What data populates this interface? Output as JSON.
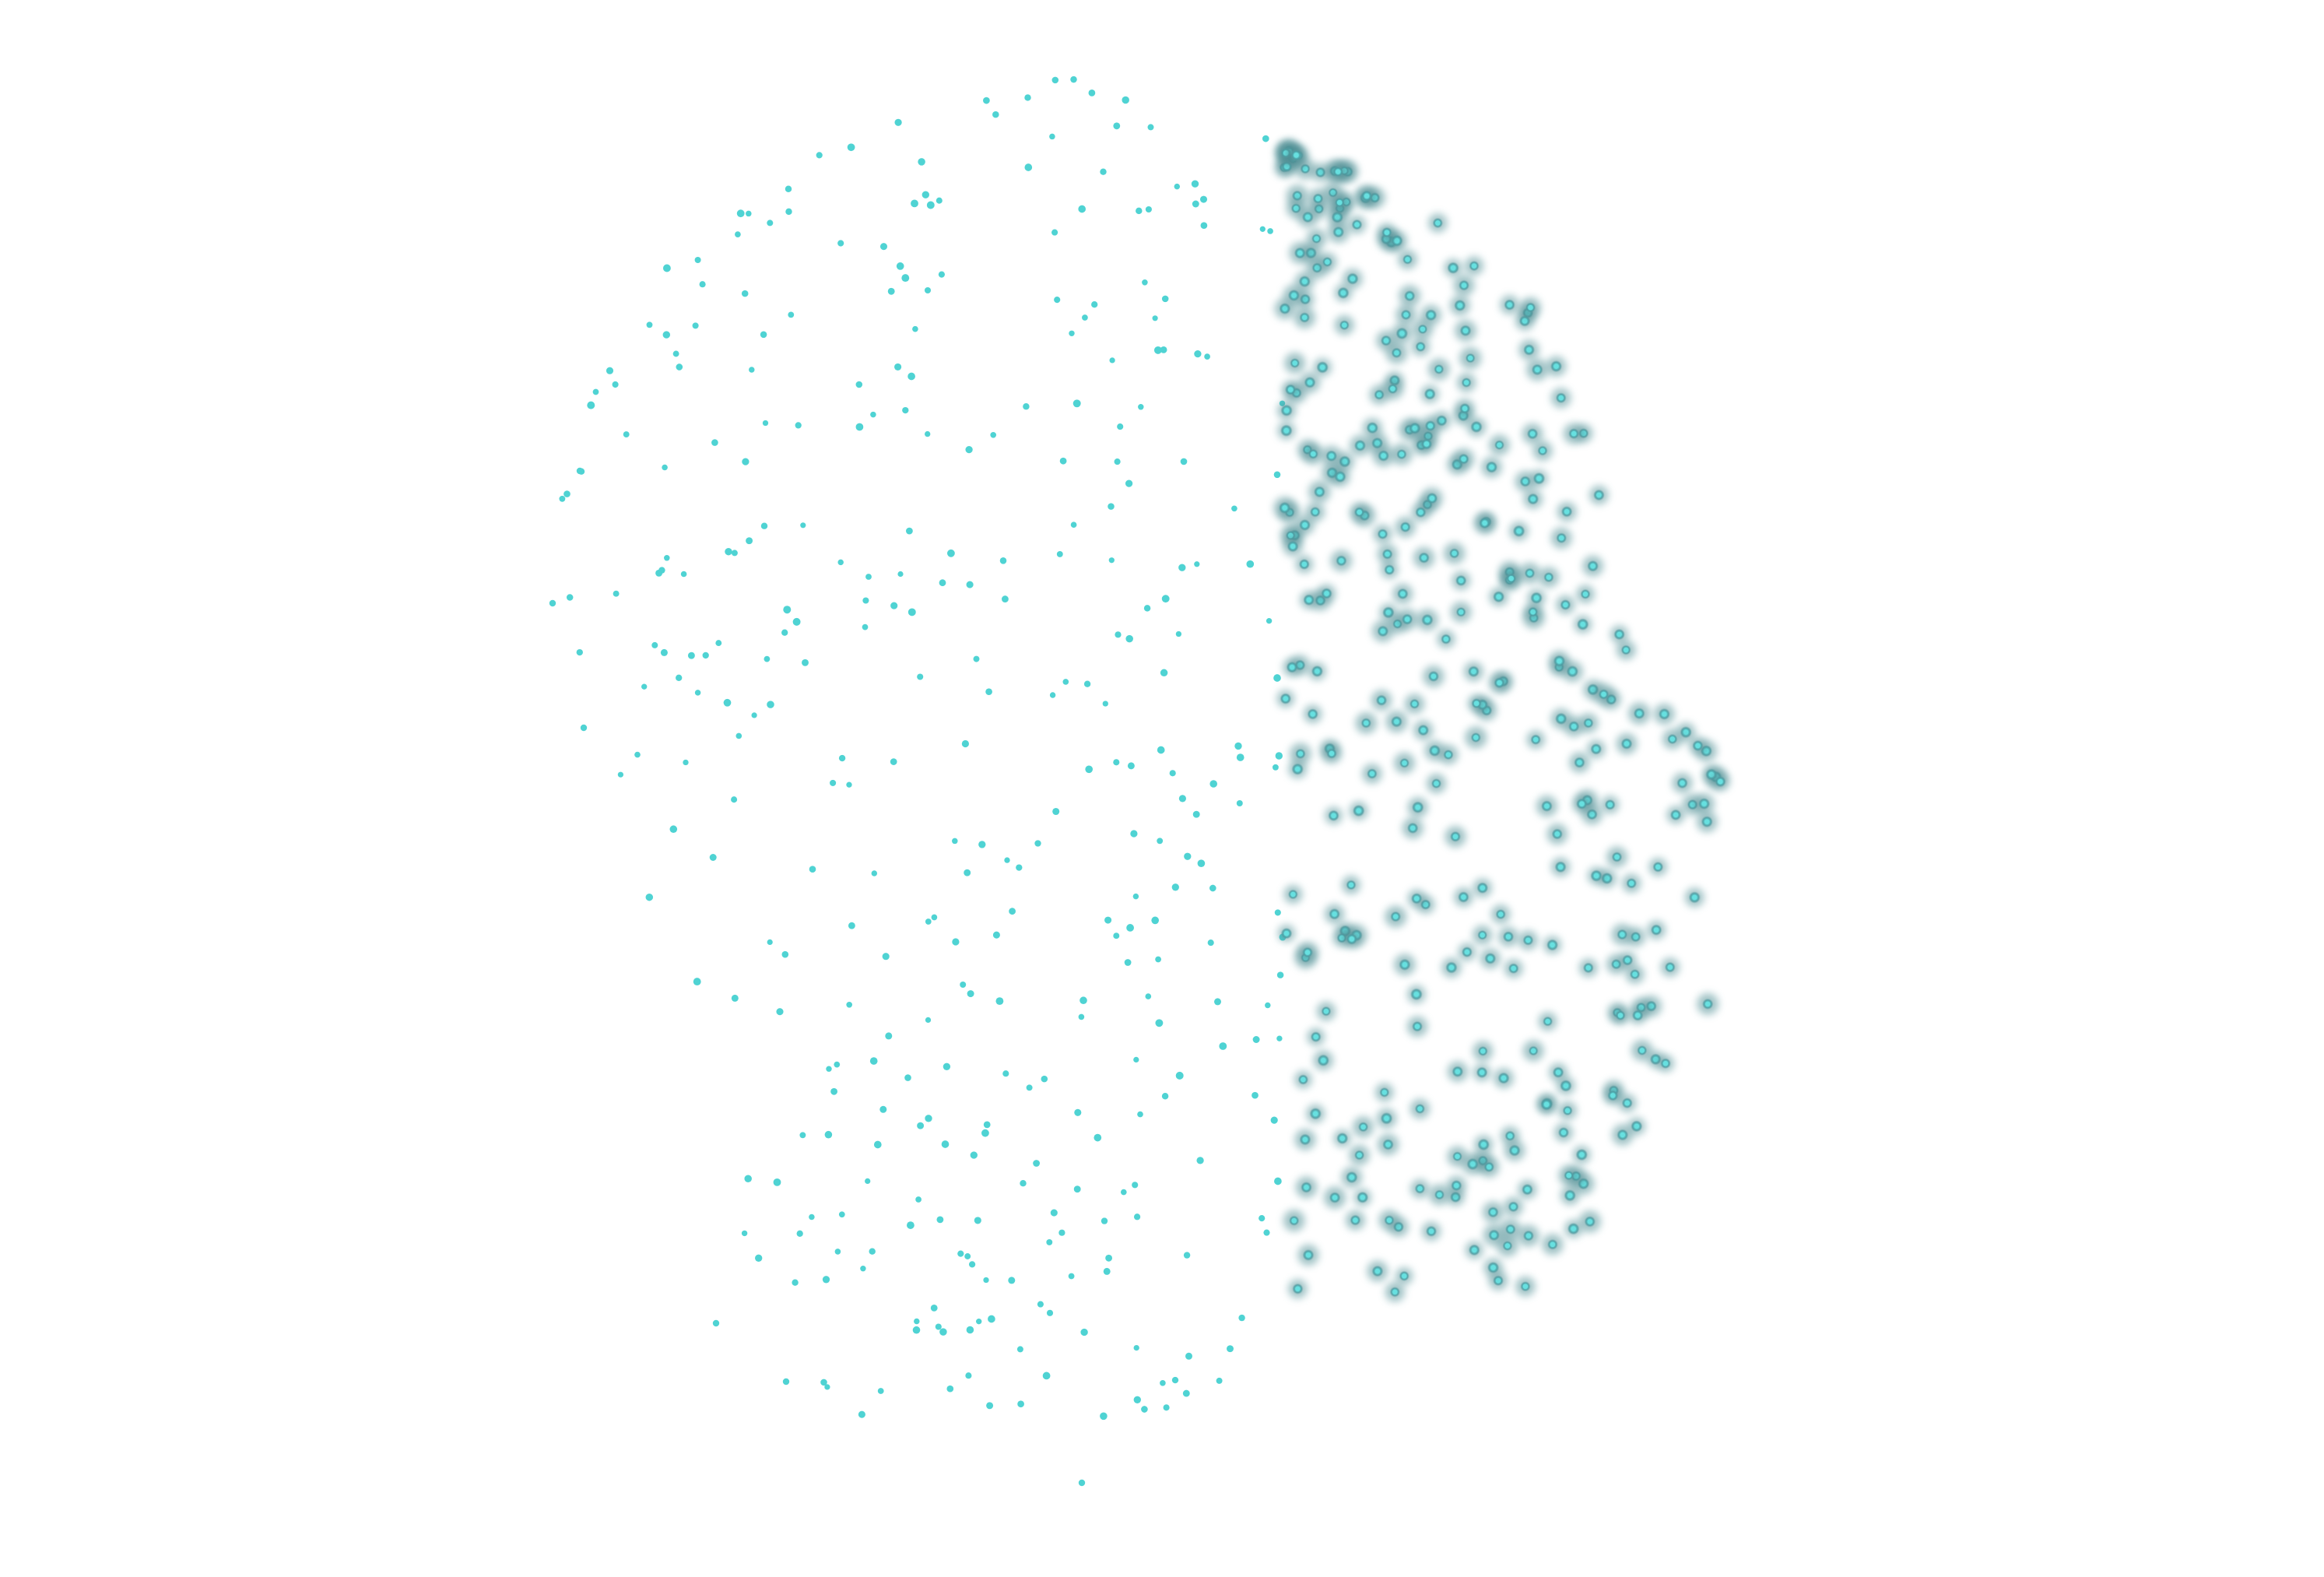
{
  "figure": {
    "kind": "point-cloud-face-profile",
    "background_color": "#ffffff",
    "point_color": "#4fd3d3",
    "glow_color": "#3b8f93",
    "sharp_points_count_approx": 345,
    "glow_points_count_approx": 360
  }
}
